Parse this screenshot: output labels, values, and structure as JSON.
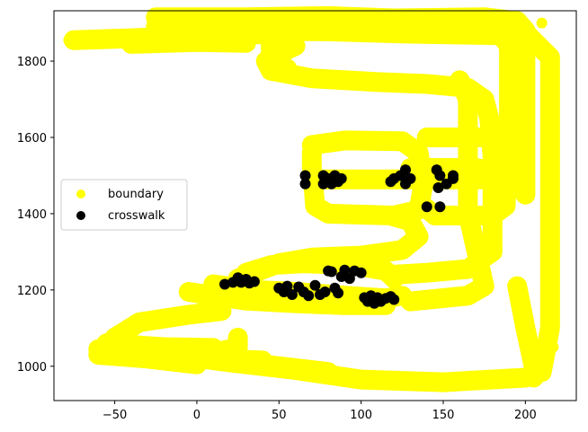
{
  "chart_data": {
    "type": "scatter",
    "xlim": [
      -87,
      231
    ],
    "ylim": [
      910,
      1932
    ],
    "x_ticks": [
      -50,
      0,
      50,
      100,
      150,
      200
    ],
    "y_ticks": [
      1000,
      1200,
      1400,
      1600,
      1800
    ],
    "grid": false,
    "legend_placement": "center-left",
    "series": [
      {
        "name": "boundary",
        "color": "#ffff00",
        "paths": [
          [
            [
              -75,
              1855
            ],
            [
              -40,
              1860
            ],
            [
              -10,
              1865
            ],
            [
              20,
              1870
            ],
            [
              40,
              1870
            ],
            [
              55,
              1860
            ],
            [
              60,
              1840
            ],
            [
              50,
              1820
            ],
            [
              42,
              1800
            ],
            [
              45,
              1775
            ],
            [
              70,
              1755
            ],
            [
              110,
              1745
            ],
            [
              140,
              1740
            ],
            [
              165,
              1730
            ],
            [
              175,
              1700
            ],
            [
              178,
              1650
            ],
            [
              180,
              1550
            ],
            [
              180,
              1400
            ],
            [
              180,
              1300
            ],
            [
              165,
              1255
            ],
            [
              140,
              1245
            ],
            [
              120,
              1240
            ]
          ],
          [
            [
              -40,
              1845
            ],
            [
              0,
              1850
            ],
            [
              30,
              1848
            ]
          ],
          [
            [
              -25,
              1915
            ],
            [
              30,
              1915
            ],
            [
              80,
              1918
            ],
            [
              120,
              1912
            ],
            [
              175,
              1915
            ],
            [
              195,
              1905
            ],
            [
              200,
              1880
            ],
            [
              200,
              1600
            ],
            [
              200,
              1450
            ]
          ],
          [
            [
              30,
              1880
            ],
            [
              80,
              1878
            ],
            [
              130,
              1872
            ],
            [
              185,
              1868
            ],
            [
              190,
              1840
            ],
            [
              190,
              1600
            ]
          ],
          [
            [
              -25,
              1890
            ],
            [
              20,
              1885
            ],
            [
              60,
              1882
            ],
            [
              100,
              1880
            ]
          ],
          [
            [
              45,
              1860
            ],
            [
              45,
              1810
            ],
            [
              55,
              1780
            ]
          ],
          [
            [
              70,
              1560
            ],
            [
              70,
              1525
            ],
            [
              72,
              1420
            ],
            [
              80,
              1400
            ],
            [
              120,
              1395
            ],
            [
              135,
              1410
            ],
            [
              138,
              1480
            ],
            [
              135,
              1560
            ],
            [
              125,
              1590
            ],
            [
              90,
              1592
            ],
            [
              70,
              1580
            ]
          ],
          [
            [
              140,
              1600
            ],
            [
              180,
              1600
            ],
            [
              190,
              1580
            ],
            [
              188,
              1420
            ],
            [
              180,
              1395
            ],
            [
              145,
              1395
            ],
            [
              138,
              1420
            ]
          ],
          [
            [
              120,
              1392
            ],
            [
              130,
              1380
            ],
            [
              135,
              1340
            ],
            [
              125,
              1305
            ],
            [
              100,
              1290
            ],
            [
              70,
              1285
            ],
            [
              50,
              1270
            ],
            [
              35,
              1245
            ],
            [
              25,
              1230
            ]
          ],
          [
            [
              72,
              1490
            ],
            [
              180,
              1490
            ]
          ],
          [
            [
              130,
              1520
            ],
            [
              170,
              1520
            ],
            [
              180,
              1510
            ]
          ],
          [
            [
              30,
              1245
            ],
            [
              45,
              1265
            ],
            [
              65,
              1270
            ],
            [
              95,
              1265
            ],
            [
              115,
              1250
            ],
            [
              120,
              1230
            ]
          ],
          [
            [
              10,
              1215
            ],
            [
              35,
              1200
            ],
            [
              60,
              1195
            ],
            [
              90,
              1185
            ],
            [
              115,
              1178
            ],
            [
              125,
              1185
            ]
          ],
          [
            [
              -5,
              1195
            ],
            [
              30,
              1172
            ],
            [
              60,
              1165
            ],
            [
              90,
              1160
            ],
            [
              115,
              1160
            ]
          ],
          [
            [
              15,
              1145
            ],
            [
              -5,
              1135
            ],
            [
              -35,
              1115
            ],
            [
              -50,
              1075
            ],
            [
              -40,
              1045
            ],
            [
              -15,
              1030
            ],
            [
              20,
              1010
            ],
            [
              60,
              990
            ],
            [
              100,
              965
            ],
            [
              150,
              958
            ],
            [
              200,
              970
            ],
            [
              210,
              985
            ],
            [
              215,
              1100
            ],
            [
              215,
              1600
            ],
            [
              215,
              1810
            ],
            [
              200,
              1875
            ],
            [
              185,
              1902
            ]
          ],
          [
            [
              -60,
              1045
            ],
            [
              -20,
              1030
            ],
            [
              10,
              1020
            ],
            [
              40,
              1015
            ]
          ],
          [
            [
              -55,
              1060
            ],
            [
              -20,
              1050
            ],
            [
              10,
              1048
            ]
          ],
          [
            [
              25,
              1075
            ],
            [
              25,
              1050
            ],
            [
              5,
              1030
            ],
            [
              30,
              1010
            ],
            [
              80,
              985
            ]
          ],
          [
            [
              -60,
              1030
            ],
            [
              -30,
              1020
            ],
            [
              0,
              1005
            ]
          ],
          [
            [
              195,
              1210
            ],
            [
              200,
              1100
            ],
            [
              205,
              1000
            ],
            [
              205,
              970
            ]
          ],
          [
            [
              160,
              1750
            ],
            [
              165,
              1700
            ],
            [
              165,
              1400
            ],
            [
              175,
              1210
            ],
            [
              165,
              1185
            ],
            [
              130,
              1170
            ]
          ]
        ],
        "extra_points": [
          [
            -78,
            1855
          ],
          [
            -70,
            1845
          ],
          [
            -65,
            1855
          ],
          [
            -62,
            1850
          ],
          [
            -25,
            1905
          ],
          [
            -22,
            1878
          ],
          [
            210,
            1900
          ],
          [
            217,
            1050
          ],
          [
            -62,
            1040
          ],
          [
            -57,
            1055
          ],
          [
            -60,
            1020
          ],
          [
            -47,
            1050
          ]
        ]
      },
      {
        "name": "crosswalk",
        "color": "#000000",
        "points": [
          [
            66,
            1500
          ],
          [
            66,
            1478
          ],
          [
            77,
            1500
          ],
          [
            77,
            1478
          ],
          [
            80,
            1492
          ],
          [
            82,
            1478
          ],
          [
            84,
            1500
          ],
          [
            86,
            1484
          ],
          [
            88,
            1492
          ],
          [
            120,
            1492
          ],
          [
            118,
            1484
          ],
          [
            124,
            1500
          ],
          [
            127,
            1515
          ],
          [
            127,
            1478
          ],
          [
            130,
            1492
          ],
          [
            146,
            1515
          ],
          [
            148,
            1500
          ],
          [
            147,
            1468
          ],
          [
            152,
            1478
          ],
          [
            156,
            1500
          ],
          [
            156,
            1492
          ],
          [
            140,
            1418
          ],
          [
            148,
            1418
          ],
          [
            17,
            1215
          ],
          [
            22,
            1220
          ],
          [
            25,
            1232
          ],
          [
            27,
            1220
          ],
          [
            30,
            1228
          ],
          [
            32,
            1218
          ],
          [
            35,
            1222
          ],
          [
            50,
            1205
          ],
          [
            53,
            1195
          ],
          [
            55,
            1210
          ],
          [
            58,
            1188
          ],
          [
            62,
            1208
          ],
          [
            65,
            1195
          ],
          [
            68,
            1185
          ],
          [
            72,
            1212
          ],
          [
            75,
            1188
          ],
          [
            78,
            1195
          ],
          [
            80,
            1250
          ],
          [
            82,
            1248
          ],
          [
            84,
            1205
          ],
          [
            86,
            1192
          ],
          [
            88,
            1235
          ],
          [
            90,
            1252
          ],
          [
            93,
            1230
          ],
          [
            96,
            1250
          ],
          [
            100,
            1245
          ],
          [
            102,
            1180
          ],
          [
            104,
            1170
          ],
          [
            106,
            1185
          ],
          [
            108,
            1165
          ],
          [
            110,
            1180
          ],
          [
            112,
            1170
          ],
          [
            115,
            1178
          ],
          [
            118,
            1183
          ],
          [
            120,
            1175
          ]
        ]
      }
    ]
  }
}
